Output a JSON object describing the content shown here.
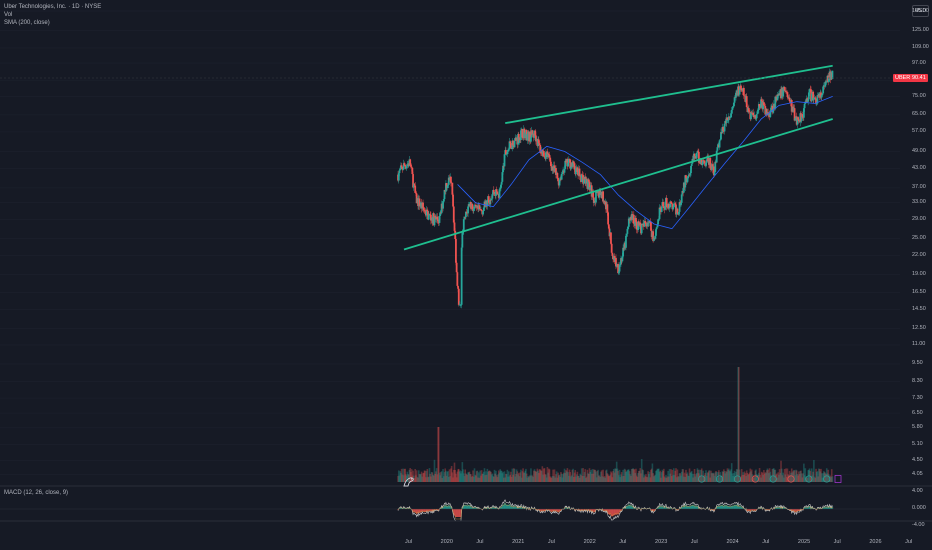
{
  "header": {
    "symbol_line": "Uber Technologies, Inc. · 1D · NYSE",
    "indicator_1": "Vol",
    "indicator_2": "SMA (200, close)"
  },
  "currency_button": "USD",
  "price_axis": {
    "labels": [
      "145.00",
      "125.00",
      "109.00",
      "97.00",
      "85.00",
      "75.00",
      "65.00",
      "57.00",
      "49.00",
      "43.00",
      "37.00",
      "33.00",
      "29.00",
      "25.00",
      "22.00",
      "19.00",
      "16.50",
      "14.50",
      "12.50",
      "11.00",
      "9.50",
      "8.30",
      "7.30",
      "6.50",
      "5.80",
      "5.10",
      "4.50",
      "4.05"
    ],
    "scale": "log"
  },
  "last_price": {
    "symbol": "UBER",
    "value": "90.41"
  },
  "macd": {
    "label": "MACD (12, 26, close, 9)",
    "axis_labels": [
      "4.00",
      "0.000",
      "-4.00"
    ]
  },
  "time_axis": {
    "labels": [
      "Jul",
      "2020",
      "Jul",
      "2021",
      "Jul",
      "2022",
      "Jul",
      "2023",
      "Jul",
      "2024",
      "Jul",
      "2025",
      "Jul",
      "2026",
      "Jul"
    ]
  },
  "colors": {
    "background": "#161a25",
    "up": "#26a69a",
    "down": "#ef5350",
    "trendline": "#1fbf8f",
    "sma": "#2962ff",
    "macd_line": "#c8c8c8",
    "price_tag": "#f23645"
  },
  "chart_data": {
    "type": "candlestick",
    "x_range": [
      "2019-05",
      "2026-08"
    ],
    "y_scale": "log",
    "ylim": [
      4.0,
      145.0
    ],
    "price_path": [
      [
        "2019-05",
        41
      ],
      [
        "2019-06",
        44
      ],
      [
        "2019-07",
        45
      ],
      [
        "2019-08",
        34
      ],
      [
        "2019-09",
        32
      ],
      [
        "2019-10",
        30
      ],
      [
        "2019-11",
        29
      ],
      [
        "2019-12",
        29
      ],
      [
        "2020-01",
        38
      ],
      [
        "2020-02",
        40
      ],
      [
        "2020-03",
        17
      ],
      [
        "2020-04",
        28
      ],
      [
        "2020-05",
        33
      ],
      [
        "2020-06",
        31
      ],
      [
        "2020-07",
        31
      ],
      [
        "2020-08",
        33
      ],
      [
        "2020-09",
        36
      ],
      [
        "2020-10",
        35
      ],
      [
        "2020-11",
        48
      ],
      [
        "2020-12",
        52
      ],
      [
        "2021-01",
        54
      ],
      [
        "2021-02",
        57
      ],
      [
        "2021-03",
        55
      ],
      [
        "2021-04",
        56
      ],
      [
        "2021-05",
        49
      ],
      [
        "2021-06",
        48
      ],
      [
        "2021-07",
        43
      ],
      [
        "2021-08",
        39
      ],
      [
        "2021-09",
        44
      ],
      [
        "2021-10",
        45
      ],
      [
        "2021-11",
        42
      ],
      [
        "2021-12",
        40
      ],
      [
        "2022-01",
        38
      ],
      [
        "2022-02",
        34
      ],
      [
        "2022-03",
        36
      ],
      [
        "2022-04",
        32
      ],
      [
        "2022-05",
        22
      ],
      [
        "2022-06",
        20
      ],
      [
        "2022-07",
        23
      ],
      [
        "2022-08",
        30
      ],
      [
        "2022-09",
        28
      ],
      [
        "2022-10",
        27
      ],
      [
        "2022-11",
        29
      ],
      [
        "2022-12",
        25
      ],
      [
        "2023-01",
        31
      ],
      [
        "2023-02",
        33
      ],
      [
        "2023-03",
        32
      ],
      [
        "2023-04",
        31
      ],
      [
        "2023-05",
        38
      ],
      [
        "2023-06",
        43
      ],
      [
        "2023-07",
        48
      ],
      [
        "2023-08",
        45
      ],
      [
        "2023-09",
        46
      ],
      [
        "2023-10",
        42
      ],
      [
        "2023-11",
        54
      ],
      [
        "2023-12",
        61
      ],
      [
        "2024-01",
        65
      ],
      [
        "2024-02",
        79
      ],
      [
        "2024-03",
        77
      ],
      [
        "2024-04",
        66
      ],
      [
        "2024-05",
        65
      ],
      [
        "2024-06",
        72
      ],
      [
        "2024-07",
        65
      ],
      [
        "2024-08",
        70
      ],
      [
        "2024-09",
        75
      ],
      [
        "2024-10",
        80
      ],
      [
        "2024-11",
        70
      ],
      [
        "2024-12",
        62
      ],
      [
        "2025-01",
        66
      ],
      [
        "2025-02",
        77
      ],
      [
        "2025-03",
        73
      ],
      [
        "2025-04",
        75
      ],
      [
        "2025-05",
        84
      ],
      [
        "2025-06",
        90.41
      ]
    ],
    "sma_200_path": [
      [
        "2020-03",
        38
      ],
      [
        "2020-06",
        33
      ],
      [
        "2020-09",
        32
      ],
      [
        "2020-12",
        38
      ],
      [
        "2021-03",
        46
      ],
      [
        "2021-06",
        51
      ],
      [
        "2021-09",
        49
      ],
      [
        "2021-12",
        45
      ],
      [
        "2022-03",
        41
      ],
      [
        "2022-06",
        35
      ],
      [
        "2022-09",
        31
      ],
      [
        "2022-12",
        28
      ],
      [
        "2023-03",
        27
      ],
      [
        "2023-06",
        32
      ],
      [
        "2023-09",
        38
      ],
      [
        "2023-12",
        45
      ],
      [
        "2024-03",
        53
      ],
      [
        "2024-06",
        63
      ],
      [
        "2024-09",
        70
      ],
      [
        "2024-12",
        72
      ],
      [
        "2025-03",
        71
      ],
      [
        "2025-06",
        75
      ]
    ],
    "trendlines": [
      {
        "from": [
          "2019-06",
          23
        ],
        "to": [
          "2025-06",
          63
        ]
      },
      {
        "from": [
          "2020-11",
          61
        ],
        "to": [
          "2025-06",
          95
        ]
      }
    ],
    "ylabel": "USD",
    "xlabel": ""
  }
}
